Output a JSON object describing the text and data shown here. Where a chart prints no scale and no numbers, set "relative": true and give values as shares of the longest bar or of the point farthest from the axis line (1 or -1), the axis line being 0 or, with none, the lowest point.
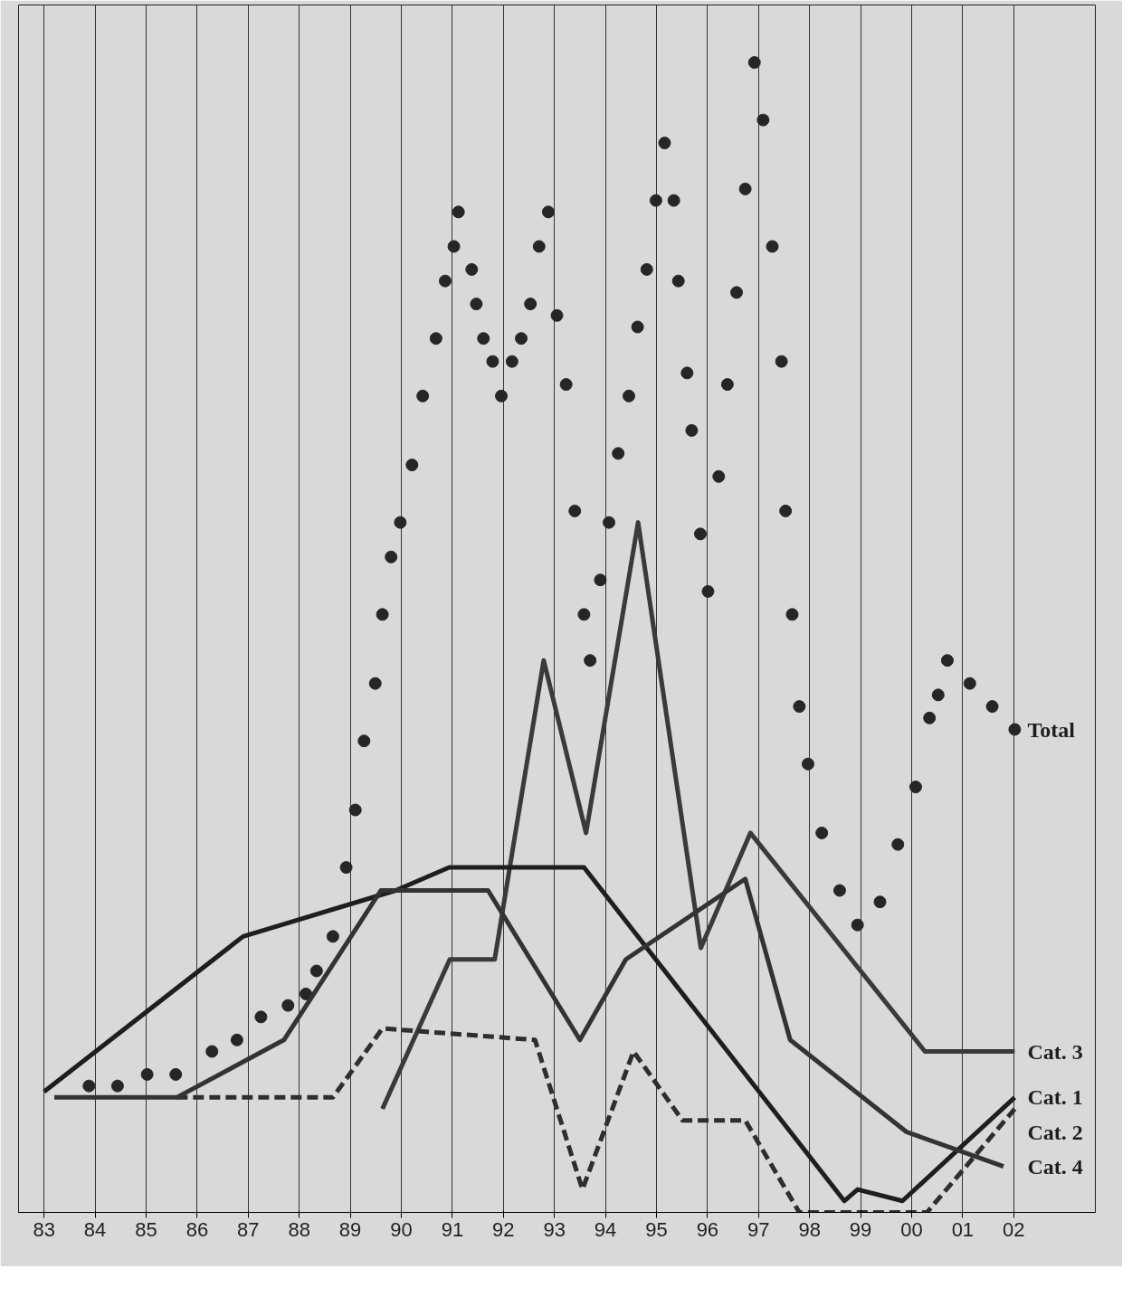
{
  "chart_data": {
    "type": "line",
    "relative": true,
    "grid": "x",
    "legend": false,
    "marker": "none",
    "line_style": "solid",
    "xlim": [
      1982.5,
      2003.6
    ],
    "xticks": [
      {
        "value": 1983,
        "label": "83"
      },
      {
        "value": 1984,
        "label": "84"
      },
      {
        "value": 1985,
        "label": "85"
      },
      {
        "value": 1986,
        "label": "86"
      },
      {
        "value": 1987,
        "label": "87"
      },
      {
        "value": 1988,
        "label": "88"
      },
      {
        "value": 1989,
        "label": "89"
      },
      {
        "value": 1990,
        "label": "90"
      },
      {
        "value": 1991,
        "label": "91"
      },
      {
        "value": 1992,
        "label": "92"
      },
      {
        "value": 1993,
        "label": "93"
      },
      {
        "value": 1994,
        "label": "94"
      },
      {
        "value": 1995,
        "label": "95"
      },
      {
        "value": 1996,
        "label": "96"
      },
      {
        "value": 1997,
        "label": "97"
      },
      {
        "value": 1998,
        "label": "98"
      },
      {
        "value": 1999,
        "label": "99"
      },
      {
        "value": 2000,
        "label": "00"
      },
      {
        "value": 2001,
        "label": "01"
      },
      {
        "value": 2002,
        "label": "02"
      }
    ],
    "series": [
      {
        "name": "Total",
        "type": "scatter",
        "marker": "circle",
        "color": "#262626",
        "x": [
          1983.88,
          1984.44,
          1985.02,
          1985.58,
          1986.29,
          1986.78,
          1987.25,
          1987.78,
          1988.13,
          1988.34,
          1988.66,
          1988.92,
          1989.1,
          1989.27,
          1989.49,
          1989.63,
          1989.8,
          1989.98,
          1990.21,
          1990.42,
          1990.68,
          1990.86,
          1991.03,
          1991.12,
          1991.38,
          1991.47,
          1991.61,
          1991.79,
          1991.96,
          1992.17,
          1992.35,
          1992.53,
          1992.7,
          1992.88,
          1993.05,
          1993.23,
          1993.4,
          1993.58,
          1993.7,
          1993.9,
          1994.07,
          1994.25,
          1994.46,
          1994.63,
          1994.81,
          1994.99,
          1995.16,
          1995.34,
          1995.43,
          1995.6,
          1995.69,
          1995.86,
          1996.01,
          1996.22,
          1996.39,
          1996.57,
          1996.74,
          1996.92,
          1997.09,
          1997.27,
          1997.45,
          1997.53,
          1997.66,
          1997.8,
          1997.97,
          1998.24,
          1998.59,
          1998.94,
          1999.38,
          1999.73,
          2000.08,
          2000.35,
          2000.52,
          2000.7,
          2001.14,
          2001.58,
          2002.02
        ],
        "values": [
          0.11,
          0.11,
          0.12,
          0.12,
          0.14,
          0.15,
          0.17,
          0.18,
          0.19,
          0.21,
          0.24,
          0.3,
          0.35,
          0.41,
          0.46,
          0.52,
          0.57,
          0.6,
          0.65,
          0.71,
          0.76,
          0.81,
          0.84,
          0.87,
          0.82,
          0.79,
          0.76,
          0.74,
          0.71,
          0.74,
          0.76,
          0.79,
          0.84,
          0.87,
          0.78,
          0.72,
          0.61,
          0.52,
          0.48,
          0.55,
          0.6,
          0.66,
          0.71,
          0.77,
          0.82,
          0.88,
          0.93,
          0.88,
          0.81,
          0.73,
          0.68,
          0.59,
          0.54,
          0.64,
          0.72,
          0.8,
          0.89,
          1.0,
          0.95,
          0.84,
          0.74,
          0.61,
          0.52,
          0.44,
          0.39,
          0.33,
          0.28,
          0.25,
          0.27,
          0.32,
          0.37,
          0.43,
          0.45,
          0.48,
          0.46,
          0.44,
          0.42
        ]
      },
      {
        "name": "Cat. 3",
        "color": "#3a3a3a",
        "x": [
          1989.63,
          1990.95,
          1991.83,
          1992.79,
          1993.62,
          1994.64,
          1995.87,
          1996.84,
          2000.26,
          2002.02
        ],
        "values": [
          0.09,
          0.22,
          0.22,
          0.48,
          0.33,
          0.6,
          0.23,
          0.33,
          0.14,
          0.14
        ]
      },
      {
        "name": "Cat. 1",
        "color": "#1e1e1e",
        "x": [
          1983.0,
          1986.9,
          1989.89,
          1990.94,
          1993.58,
          1998.68,
          1998.94,
          1999.82,
          2002.02
        ],
        "values": [
          0.105,
          0.24,
          0.28,
          0.3,
          0.3,
          0.01,
          0.02,
          0.01,
          0.1
        ]
      },
      {
        "name": "Cat. 2",
        "color": "#2e2e2e",
        "line_style": "dashed",
        "x": [
          1985.6,
          1988.66,
          1989.63,
          1992.62,
          1993.55,
          1994.55,
          1995.51,
          1996.74,
          1997.8,
          2000.3,
          2002.02
        ],
        "values": [
          0.1,
          0.1,
          0.16,
          0.15,
          0.02,
          0.14,
          0.08,
          0.08,
          0.0,
          0.0,
          0.09
        ]
      },
      {
        "name": "Cat. 4",
        "color": "#333333",
        "x": [
          1983.2,
          1985.6,
          1987.7,
          1989.6,
          1991.7,
          1993.5,
          1994.4,
          1996.74,
          1997.62,
          1999.9,
          2001.8
        ],
        "values": [
          0.1,
          0.1,
          0.15,
          0.28,
          0.28,
          0.15,
          0.22,
          0.29,
          0.15,
          0.07,
          0.04
        ]
      }
    ]
  }
}
